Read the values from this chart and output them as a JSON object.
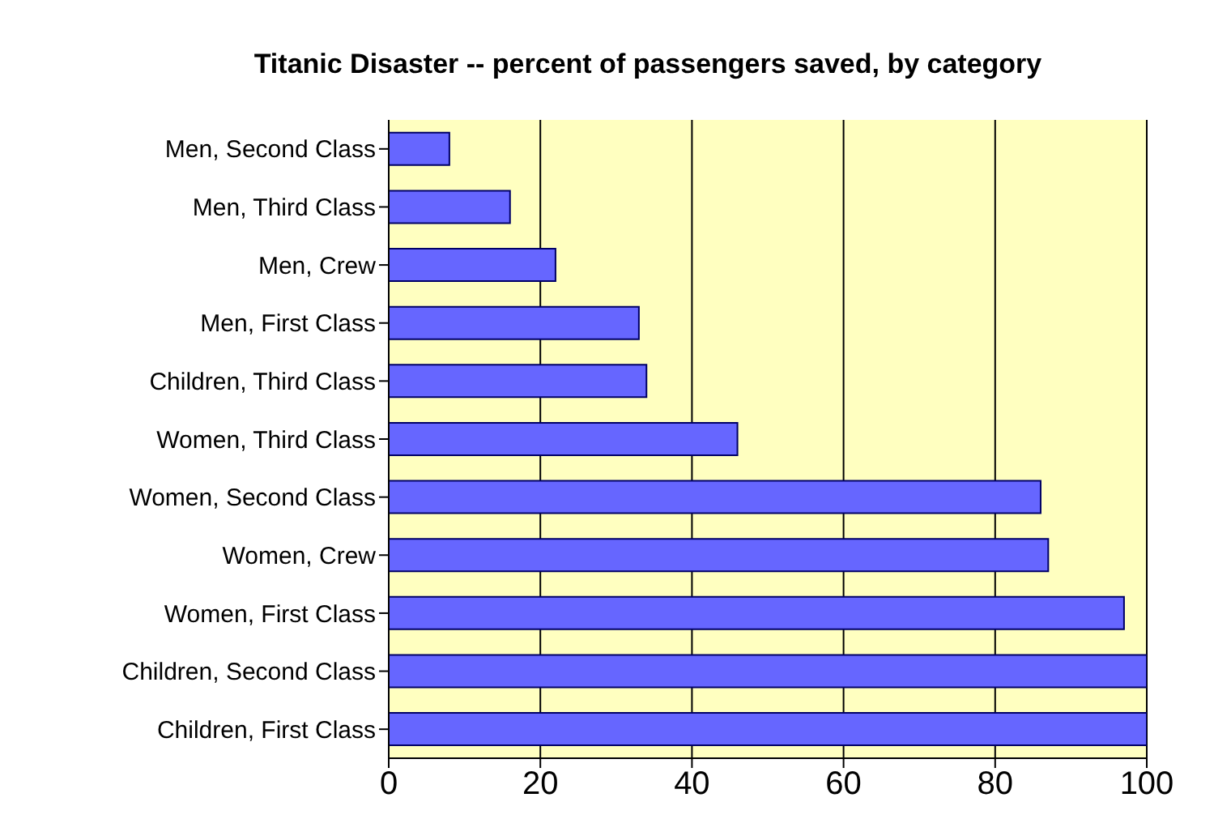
{
  "chart_data": {
    "type": "bar",
    "orientation": "horizontal",
    "title": "Titanic Disaster --  percent of passengers saved, by category",
    "categories": [
      "Men, Second Class",
      "Men, Third Class",
      "Men, Crew",
      "Men, First Class",
      "Children, Third Class",
      "Women, Third Class",
      "Women, Second Class",
      "Women, Crew",
      "Women, First Class",
      "Children, Second Class",
      "Children, First Class"
    ],
    "values": [
      8,
      16,
      22,
      33,
      34,
      46,
      86,
      87,
      97,
      100,
      100
    ],
    "color": "#6666ff",
    "xlim": [
      0,
      100
    ],
    "xticks": [
      0,
      20,
      40,
      60,
      80,
      100
    ],
    "grid": "x"
  }
}
